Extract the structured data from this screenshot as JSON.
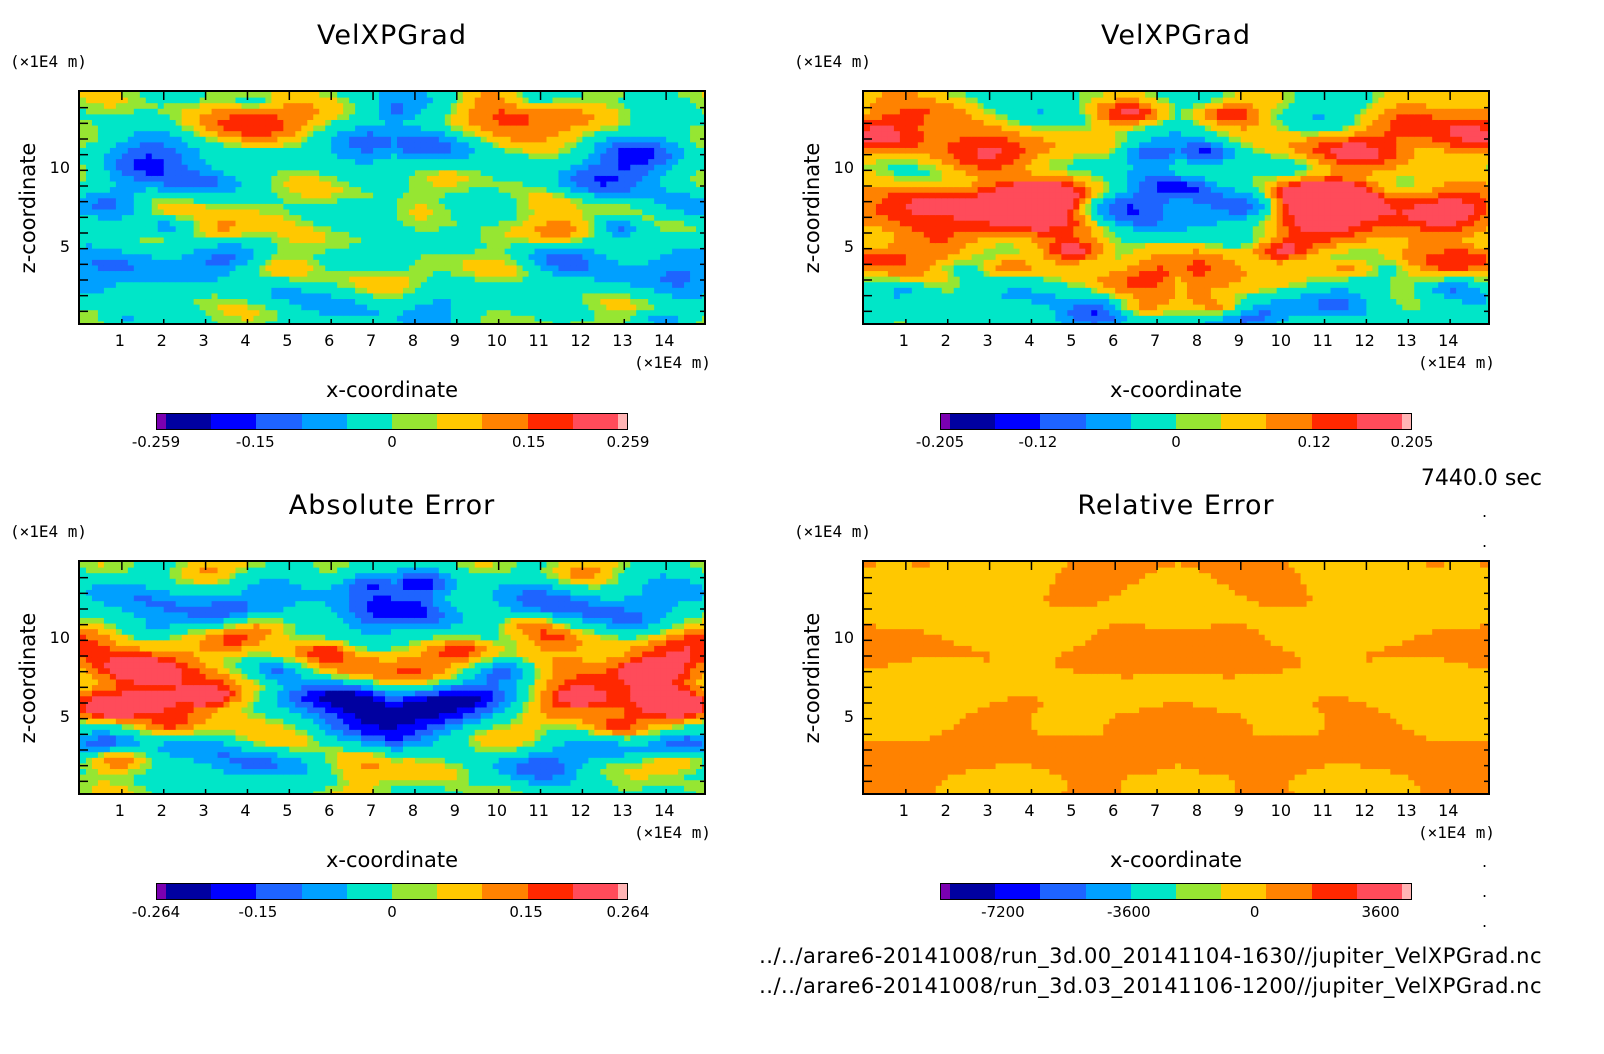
{
  "palette": [
    "#7a00b0",
    "#0000a0",
    "#0000ff",
    "#1e64ff",
    "#00a0ff",
    "#00e6c8",
    "#96e632",
    "#ffc800",
    "#ff8200",
    "#ff2800",
    "#ff4b5a",
    "#ffb4b4"
  ],
  "time_label": "7440.0 sec",
  "file_paths": [
    "../../arare6-20141008/run_3d.00_20141104-1630//jupiter_VelXPGrad.nc",
    "../../arare6-20141008/run_3d.03_20141106-1200//jupiter_VelXPGrad.nc"
  ],
  "chart_data": [
    {
      "type": "heatmap",
      "title": "VelXPGrad",
      "xlabel": "x-coordinate",
      "ylabel": "z-coordinate",
      "x_unit": "(×1E4 m)",
      "y_unit": "(×1E4 m)",
      "x_ticks": [
        "1",
        "2",
        "3",
        "4",
        "5",
        "6",
        "7",
        "8",
        "9",
        "10",
        "11",
        "12",
        "13",
        "14"
      ],
      "y_ticks": [
        "5",
        "10"
      ],
      "xlim": [
        0,
        15
      ],
      "ylim": [
        0,
        15
      ],
      "colorbar_labels": [
        "-0.259",
        "-0.15",
        "0",
        "0.15",
        "0.259"
      ],
      "colorbar_range": [
        -0.259,
        0.259
      ]
    },
    {
      "type": "heatmap",
      "title": "VelXPGrad",
      "xlabel": "x-coordinate",
      "ylabel": "z-coordinate",
      "x_unit": "(×1E4 m)",
      "y_unit": "(×1E4 m)",
      "x_ticks": [
        "1",
        "2",
        "3",
        "4",
        "5",
        "6",
        "7",
        "8",
        "9",
        "10",
        "11",
        "12",
        "13",
        "14"
      ],
      "y_ticks": [
        "5",
        "10"
      ],
      "xlim": [
        0,
        15
      ],
      "ylim": [
        0,
        15
      ],
      "colorbar_labels": [
        "-0.205",
        "-0.12",
        "0",
        "0.12",
        "0.205"
      ],
      "colorbar_range": [
        -0.205,
        0.205
      ]
    },
    {
      "type": "heatmap",
      "title": "Absolute Error",
      "xlabel": "x-coordinate",
      "ylabel": "z-coordinate",
      "x_unit": "(×1E4 m)",
      "y_unit": "(×1E4 m)",
      "x_ticks": [
        "1",
        "2",
        "3",
        "4",
        "5",
        "6",
        "7",
        "8",
        "9",
        "10",
        "11",
        "12",
        "13",
        "14"
      ],
      "y_ticks": [
        "5",
        "10"
      ],
      "xlim": [
        0,
        15
      ],
      "ylim": [
        0,
        15
      ],
      "colorbar_labels": [
        "-0.264",
        "-0.15",
        "0",
        "0.15",
        "0.264"
      ],
      "colorbar_range": [
        -0.264,
        0.264
      ]
    },
    {
      "type": "heatmap",
      "title": "Relative Error",
      "xlabel": "x-coordinate",
      "ylabel": "z-coordinate",
      "x_unit": "(×1E4 m)",
      "y_unit": "(×1E4 m)",
      "x_ticks": [
        "1",
        "2",
        "3",
        "4",
        "5",
        "6",
        "7",
        "8",
        "9",
        "10",
        "11",
        "12",
        "13",
        "14"
      ],
      "y_ticks": [
        "5",
        "10"
      ],
      "xlim": [
        0,
        15
      ],
      "ylim": [
        0,
        15
      ],
      "colorbar_labels": [
        "-7200",
        "-3600",
        "0",
        "3600"
      ],
      "colorbar_range": [
        -9000,
        4500
      ]
    }
  ]
}
